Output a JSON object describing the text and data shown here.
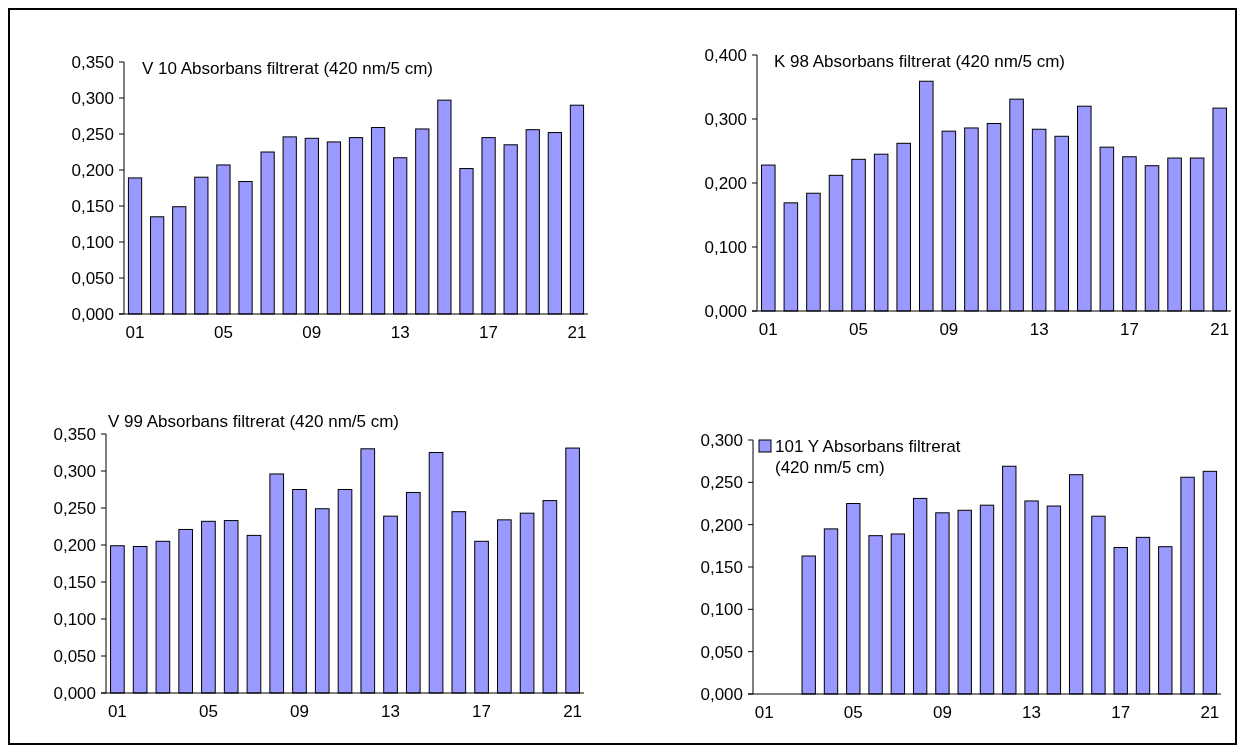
{
  "chart_data": [
    {
      "type": "bar",
      "title": "V 10 Absorbans filtrerat (420 nm/5 cm)",
      "categories": [
        "01",
        null,
        null,
        null,
        "05",
        null,
        null,
        null,
        "09",
        null,
        null,
        null,
        "13",
        null,
        null,
        null,
        "17",
        null,
        null,
        null,
        "21"
      ],
      "color": "#9999ff",
      "values": [
        0.189,
        0.135,
        0.149,
        0.19,
        0.207,
        0.184,
        0.225,
        0.246,
        0.244,
        0.239,
        0.245,
        0.259,
        0.217,
        0.257,
        0.297,
        0.202,
        0.245,
        0.235,
        0.256,
        0.252,
        0.29
      ],
      "ylim": [
        0,
        0.35
      ],
      "yticks": [
        {
          "value": 0,
          "label": "0,000"
        },
        {
          "value": 0.05,
          "label": "0,050"
        },
        {
          "value": 0.1,
          "label": "0,100"
        },
        {
          "value": 0.15,
          "label": "0,150"
        },
        {
          "value": 0.2,
          "label": "0,200"
        },
        {
          "value": 0.25,
          "label": "0,250"
        },
        {
          "value": 0.3,
          "label": "0,300"
        },
        {
          "value": 0.35,
          "label": "0,350"
        }
      ],
      "grid": false
    },
    {
      "type": "bar",
      "title": "K 98 Absorbans filtrerat (420 nm/5 cm)",
      "categories": [
        "01",
        null,
        null,
        null,
        "05",
        null,
        null,
        null,
        "09",
        null,
        null,
        null,
        "13",
        null,
        null,
        null,
        "17",
        null,
        null,
        null,
        "21"
      ],
      "color": "#9999ff",
      "values": [
        0.228,
        0.169,
        0.184,
        0.212,
        0.237,
        0.245,
        0.262,
        0.359,
        0.281,
        0.286,
        0.293,
        0.331,
        0.284,
        0.273,
        0.32,
        0.256,
        0.241,
        0.227,
        0.239,
        0.239,
        0.317
      ],
      "ylim": [
        0,
        0.4
      ],
      "yticks": [
        {
          "value": 0,
          "label": "0,000"
        },
        {
          "value": 0.1,
          "label": "0,100"
        },
        {
          "value": 0.2,
          "label": "0,200"
        },
        {
          "value": 0.3,
          "label": "0,300"
        },
        {
          "value": 0.4,
          "label": "0,400"
        }
      ],
      "grid": false
    },
    {
      "type": "bar",
      "title": "V 99 Absorbans filtrerat (420 nm/5 cm)",
      "categories": [
        "01",
        null,
        null,
        null,
        "05",
        null,
        null,
        null,
        "09",
        null,
        null,
        null,
        "13",
        null,
        null,
        null,
        "17",
        null,
        null,
        null,
        "21"
      ],
      "color": "#9999ff",
      "values": [
        0.199,
        0.198,
        0.205,
        0.221,
        0.232,
        0.233,
        0.213,
        0.296,
        0.275,
        0.249,
        0.275,
        0.33,
        0.239,
        0.271,
        0.325,
        0.245,
        0.205,
        0.234,
        0.243,
        0.26,
        0.331
      ],
      "ylim": [
        0,
        0.35
      ],
      "yticks": [
        {
          "value": 0,
          "label": "0,000"
        },
        {
          "value": 0.05,
          "label": "0,050"
        },
        {
          "value": 0.1,
          "label": "0,100"
        },
        {
          "value": 0.15,
          "label": "0,150"
        },
        {
          "value": 0.2,
          "label": "0,200"
        },
        {
          "value": 0.25,
          "label": "0,250"
        },
        {
          "value": 0.3,
          "label": "0,300"
        },
        {
          "value": 0.35,
          "label": "0,350"
        }
      ],
      "grid": false
    },
    {
      "type": "bar",
      "categories": [
        "01",
        null,
        null,
        null,
        "05",
        null,
        null,
        null,
        "09",
        null,
        null,
        null,
        "13",
        null,
        null,
        null,
        "17",
        null,
        null,
        null,
        "21"
      ],
      "series": [
        {
          "name": "101 Y Absorbans filtrerat (420 nm/5 cm)",
          "color": "#9999ff",
          "values": [
            null,
            null,
            0.163,
            0.195,
            0.225,
            0.187,
            0.189,
            0.231,
            0.214,
            0.217,
            0.223,
            0.269,
            0.228,
            0.222,
            0.259,
            0.21,
            0.173,
            0.185,
            0.174,
            0.256,
            0.263
          ]
        }
      ],
      "ylim": [
        0,
        0.3
      ],
      "yticks": [
        {
          "value": 0,
          "label": "0,000"
        },
        {
          "value": 0.05,
          "label": "0,050"
        },
        {
          "value": 0.1,
          "label": "0,100"
        },
        {
          "value": 0.15,
          "label": "0,150"
        },
        {
          "value": 0.2,
          "label": "0,200"
        },
        {
          "value": 0.25,
          "label": "0,250"
        },
        {
          "value": 0.3,
          "label": "0,300"
        }
      ],
      "grid": false,
      "legend": "top left"
    }
  ]
}
